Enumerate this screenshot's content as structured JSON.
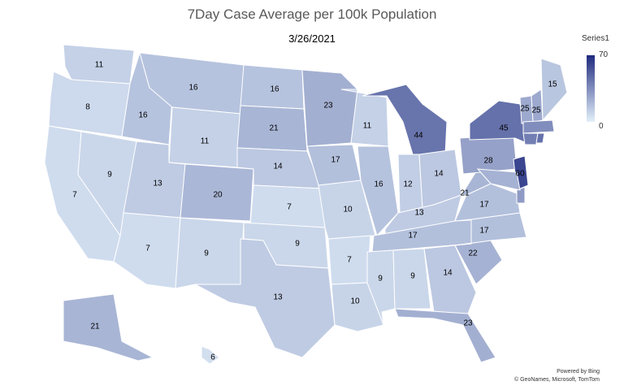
{
  "title": "7Day Case Average per 100k Population",
  "date": "3/26/2021",
  "legend": {
    "title": "Series1",
    "max": "70",
    "min": "0",
    "color_low": "#e3f0fa",
    "color_high": "#1f2a7e"
  },
  "credit": {
    "line1": "Powered by Bing",
    "line2": "© GeoNames, Microsoft, TomTom"
  },
  "chart_data": {
    "type": "choropleth",
    "scale": [
      0,
      70
    ],
    "states": [
      {
        "name": "WA",
        "value": 11
      },
      {
        "name": "OR",
        "value": 8
      },
      {
        "name": "CA",
        "value": 7
      },
      {
        "name": "NV",
        "value": 9
      },
      {
        "name": "ID",
        "value": 16
      },
      {
        "name": "MT",
        "value": 16
      },
      {
        "name": "WY",
        "value": 11
      },
      {
        "name": "UT",
        "value": 13
      },
      {
        "name": "AZ",
        "value": 7
      },
      {
        "name": "CO",
        "value": 20
      },
      {
        "name": "NM",
        "value": 9
      },
      {
        "name": "ND",
        "value": 16
      },
      {
        "name": "SD",
        "value": 21
      },
      {
        "name": "NE",
        "value": 14
      },
      {
        "name": "KS",
        "value": 7
      },
      {
        "name": "OK",
        "value": 9
      },
      {
        "name": "TX",
        "value": 13
      },
      {
        "name": "MN",
        "value": 23
      },
      {
        "name": "IA",
        "value": 17
      },
      {
        "name": "MO",
        "value": 10
      },
      {
        "name": "AR",
        "value": 7
      },
      {
        "name": "LA",
        "value": 10
      },
      {
        "name": "WI",
        "value": 11
      },
      {
        "name": "IL",
        "value": 16
      },
      {
        "name": "MI",
        "value": 44
      },
      {
        "name": "IN",
        "value": 12
      },
      {
        "name": "OH",
        "value": 14
      },
      {
        "name": "KY",
        "value": 13
      },
      {
        "name": "TN",
        "value": 17
      },
      {
        "name": "MS",
        "value": 9
      },
      {
        "name": "AL",
        "value": 9
      },
      {
        "name": "GA",
        "value": 14
      },
      {
        "name": "FL",
        "value": 23
      },
      {
        "name": "SC",
        "value": 22
      },
      {
        "name": "NC",
        "value": 17
      },
      {
        "name": "VA",
        "value": 17
      },
      {
        "name": "WV",
        "value": 21
      },
      {
        "name": "PA",
        "value": 28
      },
      {
        "name": "NY",
        "value": 45
      },
      {
        "name": "NJ",
        "value": 60
      },
      {
        "name": "VT",
        "value": 25
      },
      {
        "name": "NH",
        "value": 25
      },
      {
        "name": "ME",
        "value": 15
      },
      {
        "name": "MA",
        "value": 35
      },
      {
        "name": "CT",
        "value": 40
      },
      {
        "name": "RI",
        "value": 45
      },
      {
        "name": "DE",
        "value": 30
      },
      {
        "name": "MD",
        "value": 22
      },
      {
        "name": "AK",
        "value": 21
      },
      {
        "name": "HI",
        "value": 6
      }
    ]
  }
}
